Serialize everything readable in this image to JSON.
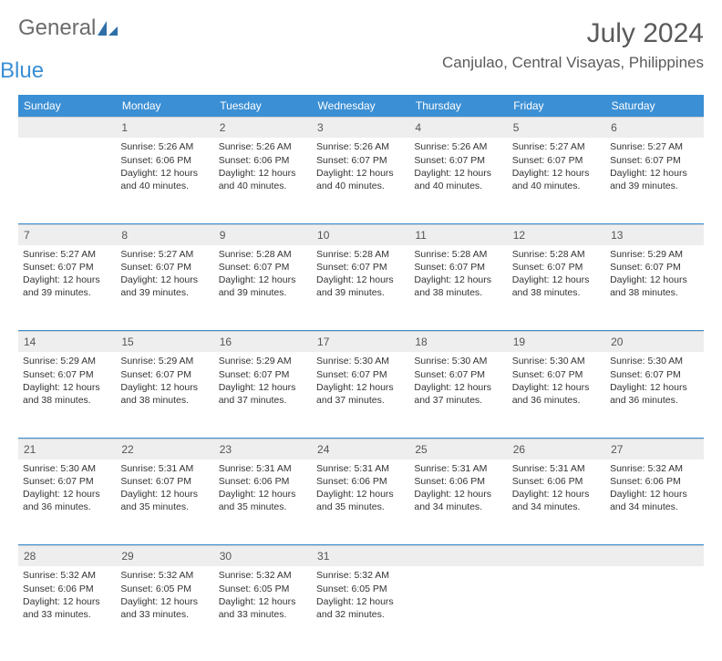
{
  "logo": {
    "text1": "General",
    "text2": "Blue",
    "icon_color": "#2f6fa8"
  },
  "colors": {
    "header_bg": "#3b8fd4",
    "header_text": "#ffffff",
    "daynum_bg": "#eeeeee",
    "daynum_text": "#555555",
    "body_text": "#333333",
    "week_divider": "#3b8fd4",
    "title_text": "#5a5a5a"
  },
  "title": "July 2024",
  "location": "Canjulao, Central Visayas, Philippines",
  "weekdays": [
    "Sunday",
    "Monday",
    "Tuesday",
    "Wednesday",
    "Thursday",
    "Friday",
    "Saturday"
  ],
  "weeks": [
    [
      {
        "n": "",
        "sunrise": "",
        "sunset": "",
        "daylight": ""
      },
      {
        "n": "1",
        "sunrise": "Sunrise: 5:26 AM",
        "sunset": "Sunset: 6:06 PM",
        "daylight": "Daylight: 12 hours and 40 minutes."
      },
      {
        "n": "2",
        "sunrise": "Sunrise: 5:26 AM",
        "sunset": "Sunset: 6:06 PM",
        "daylight": "Daylight: 12 hours and 40 minutes."
      },
      {
        "n": "3",
        "sunrise": "Sunrise: 5:26 AM",
        "sunset": "Sunset: 6:07 PM",
        "daylight": "Daylight: 12 hours and 40 minutes."
      },
      {
        "n": "4",
        "sunrise": "Sunrise: 5:26 AM",
        "sunset": "Sunset: 6:07 PM",
        "daylight": "Daylight: 12 hours and 40 minutes."
      },
      {
        "n": "5",
        "sunrise": "Sunrise: 5:27 AM",
        "sunset": "Sunset: 6:07 PM",
        "daylight": "Daylight: 12 hours and 40 minutes."
      },
      {
        "n": "6",
        "sunrise": "Sunrise: 5:27 AM",
        "sunset": "Sunset: 6:07 PM",
        "daylight": "Daylight: 12 hours and 39 minutes."
      }
    ],
    [
      {
        "n": "7",
        "sunrise": "Sunrise: 5:27 AM",
        "sunset": "Sunset: 6:07 PM",
        "daylight": "Daylight: 12 hours and 39 minutes."
      },
      {
        "n": "8",
        "sunrise": "Sunrise: 5:27 AM",
        "sunset": "Sunset: 6:07 PM",
        "daylight": "Daylight: 12 hours and 39 minutes."
      },
      {
        "n": "9",
        "sunrise": "Sunrise: 5:28 AM",
        "sunset": "Sunset: 6:07 PM",
        "daylight": "Daylight: 12 hours and 39 minutes."
      },
      {
        "n": "10",
        "sunrise": "Sunrise: 5:28 AM",
        "sunset": "Sunset: 6:07 PM",
        "daylight": "Daylight: 12 hours and 39 minutes."
      },
      {
        "n": "11",
        "sunrise": "Sunrise: 5:28 AM",
        "sunset": "Sunset: 6:07 PM",
        "daylight": "Daylight: 12 hours and 38 minutes."
      },
      {
        "n": "12",
        "sunrise": "Sunrise: 5:28 AM",
        "sunset": "Sunset: 6:07 PM",
        "daylight": "Daylight: 12 hours and 38 minutes."
      },
      {
        "n": "13",
        "sunrise": "Sunrise: 5:29 AM",
        "sunset": "Sunset: 6:07 PM",
        "daylight": "Daylight: 12 hours and 38 minutes."
      }
    ],
    [
      {
        "n": "14",
        "sunrise": "Sunrise: 5:29 AM",
        "sunset": "Sunset: 6:07 PM",
        "daylight": "Daylight: 12 hours and 38 minutes."
      },
      {
        "n": "15",
        "sunrise": "Sunrise: 5:29 AM",
        "sunset": "Sunset: 6:07 PM",
        "daylight": "Daylight: 12 hours and 38 minutes."
      },
      {
        "n": "16",
        "sunrise": "Sunrise: 5:29 AM",
        "sunset": "Sunset: 6:07 PM",
        "daylight": "Daylight: 12 hours and 37 minutes."
      },
      {
        "n": "17",
        "sunrise": "Sunrise: 5:30 AM",
        "sunset": "Sunset: 6:07 PM",
        "daylight": "Daylight: 12 hours and 37 minutes."
      },
      {
        "n": "18",
        "sunrise": "Sunrise: 5:30 AM",
        "sunset": "Sunset: 6:07 PM",
        "daylight": "Daylight: 12 hours and 37 minutes."
      },
      {
        "n": "19",
        "sunrise": "Sunrise: 5:30 AM",
        "sunset": "Sunset: 6:07 PM",
        "daylight": "Daylight: 12 hours and 36 minutes."
      },
      {
        "n": "20",
        "sunrise": "Sunrise: 5:30 AM",
        "sunset": "Sunset: 6:07 PM",
        "daylight": "Daylight: 12 hours and 36 minutes."
      }
    ],
    [
      {
        "n": "21",
        "sunrise": "Sunrise: 5:30 AM",
        "sunset": "Sunset: 6:07 PM",
        "daylight": "Daylight: 12 hours and 36 minutes."
      },
      {
        "n": "22",
        "sunrise": "Sunrise: 5:31 AM",
        "sunset": "Sunset: 6:07 PM",
        "daylight": "Daylight: 12 hours and 35 minutes."
      },
      {
        "n": "23",
        "sunrise": "Sunrise: 5:31 AM",
        "sunset": "Sunset: 6:06 PM",
        "daylight": "Daylight: 12 hours and 35 minutes."
      },
      {
        "n": "24",
        "sunrise": "Sunrise: 5:31 AM",
        "sunset": "Sunset: 6:06 PM",
        "daylight": "Daylight: 12 hours and 35 minutes."
      },
      {
        "n": "25",
        "sunrise": "Sunrise: 5:31 AM",
        "sunset": "Sunset: 6:06 PM",
        "daylight": "Daylight: 12 hours and 34 minutes."
      },
      {
        "n": "26",
        "sunrise": "Sunrise: 5:31 AM",
        "sunset": "Sunset: 6:06 PM",
        "daylight": "Daylight: 12 hours and 34 minutes."
      },
      {
        "n": "27",
        "sunrise": "Sunrise: 5:32 AM",
        "sunset": "Sunset: 6:06 PM",
        "daylight": "Daylight: 12 hours and 34 minutes."
      }
    ],
    [
      {
        "n": "28",
        "sunrise": "Sunrise: 5:32 AM",
        "sunset": "Sunset: 6:06 PM",
        "daylight": "Daylight: 12 hours and 33 minutes."
      },
      {
        "n": "29",
        "sunrise": "Sunrise: 5:32 AM",
        "sunset": "Sunset: 6:05 PM",
        "daylight": "Daylight: 12 hours and 33 minutes."
      },
      {
        "n": "30",
        "sunrise": "Sunrise: 5:32 AM",
        "sunset": "Sunset: 6:05 PM",
        "daylight": "Daylight: 12 hours and 33 minutes."
      },
      {
        "n": "31",
        "sunrise": "Sunrise: 5:32 AM",
        "sunset": "Sunset: 6:05 PM",
        "daylight": "Daylight: 12 hours and 32 minutes."
      },
      {
        "n": "",
        "sunrise": "",
        "sunset": "",
        "daylight": ""
      },
      {
        "n": "",
        "sunrise": "",
        "sunset": "",
        "daylight": ""
      },
      {
        "n": "",
        "sunrise": "",
        "sunset": "",
        "daylight": ""
      }
    ]
  ]
}
